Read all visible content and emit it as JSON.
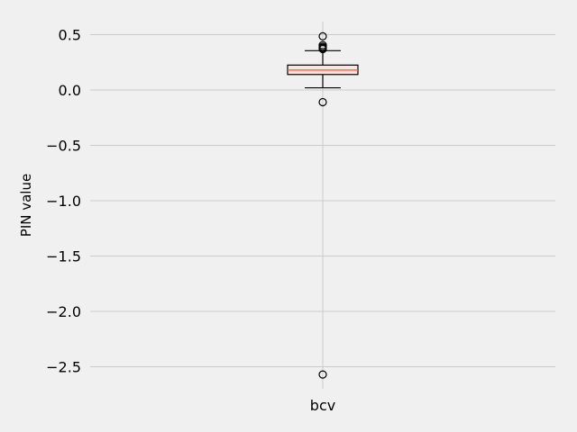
{
  "chart_data": {
    "type": "box",
    "ylabel": "PIN value",
    "categories": [
      "bcv"
    ],
    "ylim": [
      -2.6,
      0.62
    ],
    "yticks": [
      0.5,
      0.0,
      -0.5,
      -1.0,
      -1.5,
      -2.0,
      -2.5
    ],
    "ytick_labels": [
      "0.5",
      "0.0",
      "−0.5",
      "−1.0",
      "−1.5",
      "−2.0",
      "−2.5"
    ],
    "grid": true,
    "colors": {
      "background": "#f0f0f0",
      "grid": "#cbcbcb",
      "box_fill": "#fbe5e1",
      "median": "#fc4f30",
      "box_edge": "#000000"
    },
    "boxes": [
      {
        "category": "bcv",
        "whisker_low": 0.02,
        "q1": 0.14,
        "median": 0.18,
        "q3": 0.225,
        "whisker_high": 0.355,
        "outliers": [
          0.485,
          0.405,
          0.39,
          0.38,
          0.37,
          -0.11,
          -2.57
        ]
      }
    ]
  }
}
